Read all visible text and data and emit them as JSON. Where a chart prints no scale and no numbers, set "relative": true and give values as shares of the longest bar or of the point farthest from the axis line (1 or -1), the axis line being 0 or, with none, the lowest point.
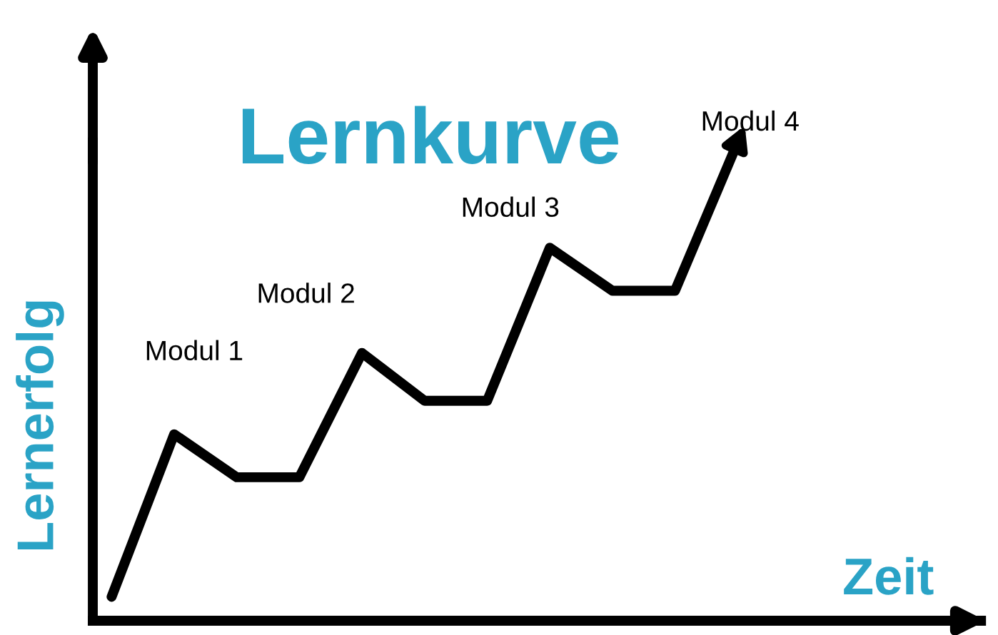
{
  "chart_data": {
    "type": "line",
    "title": "Lernkurve",
    "xlabel": "Zeit",
    "ylabel": "Lernerfolg",
    "relative": true,
    "categories": [
      null,
      null,
      null,
      null,
      null,
      null,
      null,
      null,
      null,
      null,
      null
    ],
    "series": [
      {
        "color": "#000000",
        "values": [
          0.05,
          0.39,
          0.3,
          0.3,
          0.56,
          0.46,
          0.46,
          0.78,
          0.69,
          0.69,
          1.0
        ]
      }
    ],
    "annotations": [
      "Modul 1",
      "Modul 2",
      "Modul 3",
      "Modul 4"
    ],
    "marker": "none",
    "line_style": "solid"
  }
}
